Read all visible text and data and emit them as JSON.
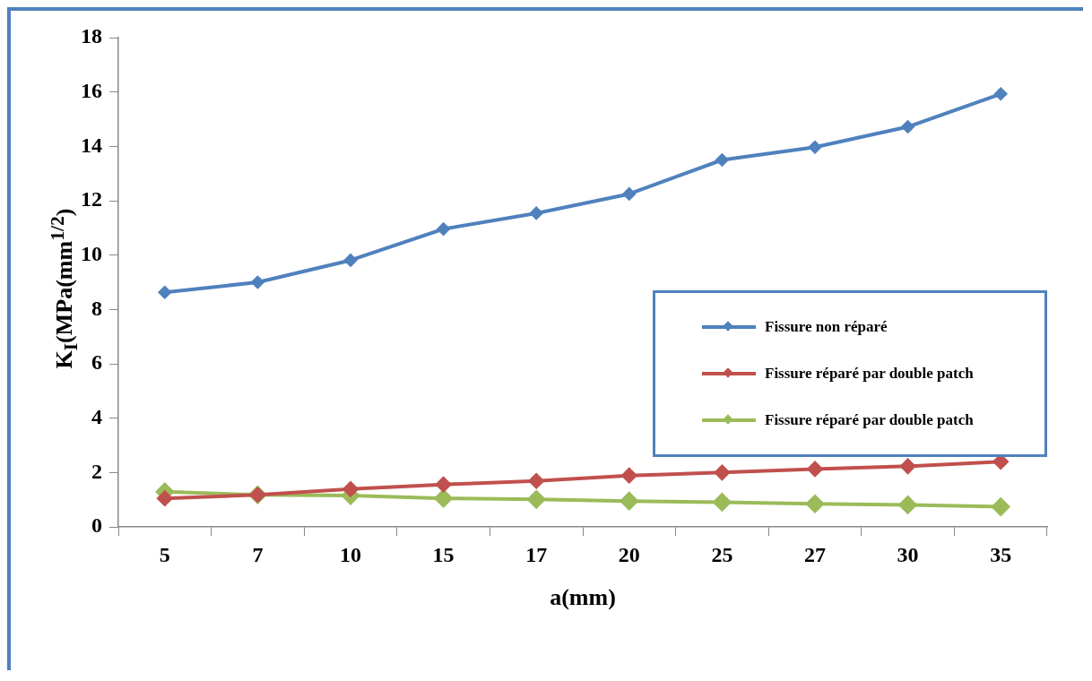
{
  "chart_data": {
    "type": "line",
    "xlabel": "a(mm)",
    "ylabel": "K$_{I}$(MPa(mm$^{1/2}$)",
    "categories": [
      "5",
      "7",
      "10",
      "15",
      "17",
      "20",
      "25",
      "27",
      "30",
      "35"
    ],
    "series": [
      {
        "name": "Fissure non réparé",
        "color": "#4f81bd",
        "values": [
          8.63,
          9.0,
          9.81,
          10.96,
          11.54,
          12.25,
          13.5,
          13.97,
          14.72,
          15.93
        ]
      },
      {
        "name": "Fissure réparé par double patch",
        "color": "#c0504d",
        "values": [
          1.05,
          1.18,
          1.39,
          1.56,
          1.69,
          1.89,
          2.0,
          2.13,
          2.23,
          2.4
        ]
      },
      {
        "name": "Fissure réparé par double patch",
        "color": "#9bbb59",
        "values": [
          1.29,
          1.18,
          1.15,
          1.05,
          1.01,
          0.95,
          0.91,
          0.85,
          0.81,
          0.74
        ]
      }
    ],
    "ylim": [
      0,
      18
    ],
    "yticks": [
      0,
      2,
      4,
      6,
      8,
      10,
      12,
      14,
      16,
      18
    ],
    "grid": false,
    "legend": "right",
    "marker": "diamond"
  }
}
